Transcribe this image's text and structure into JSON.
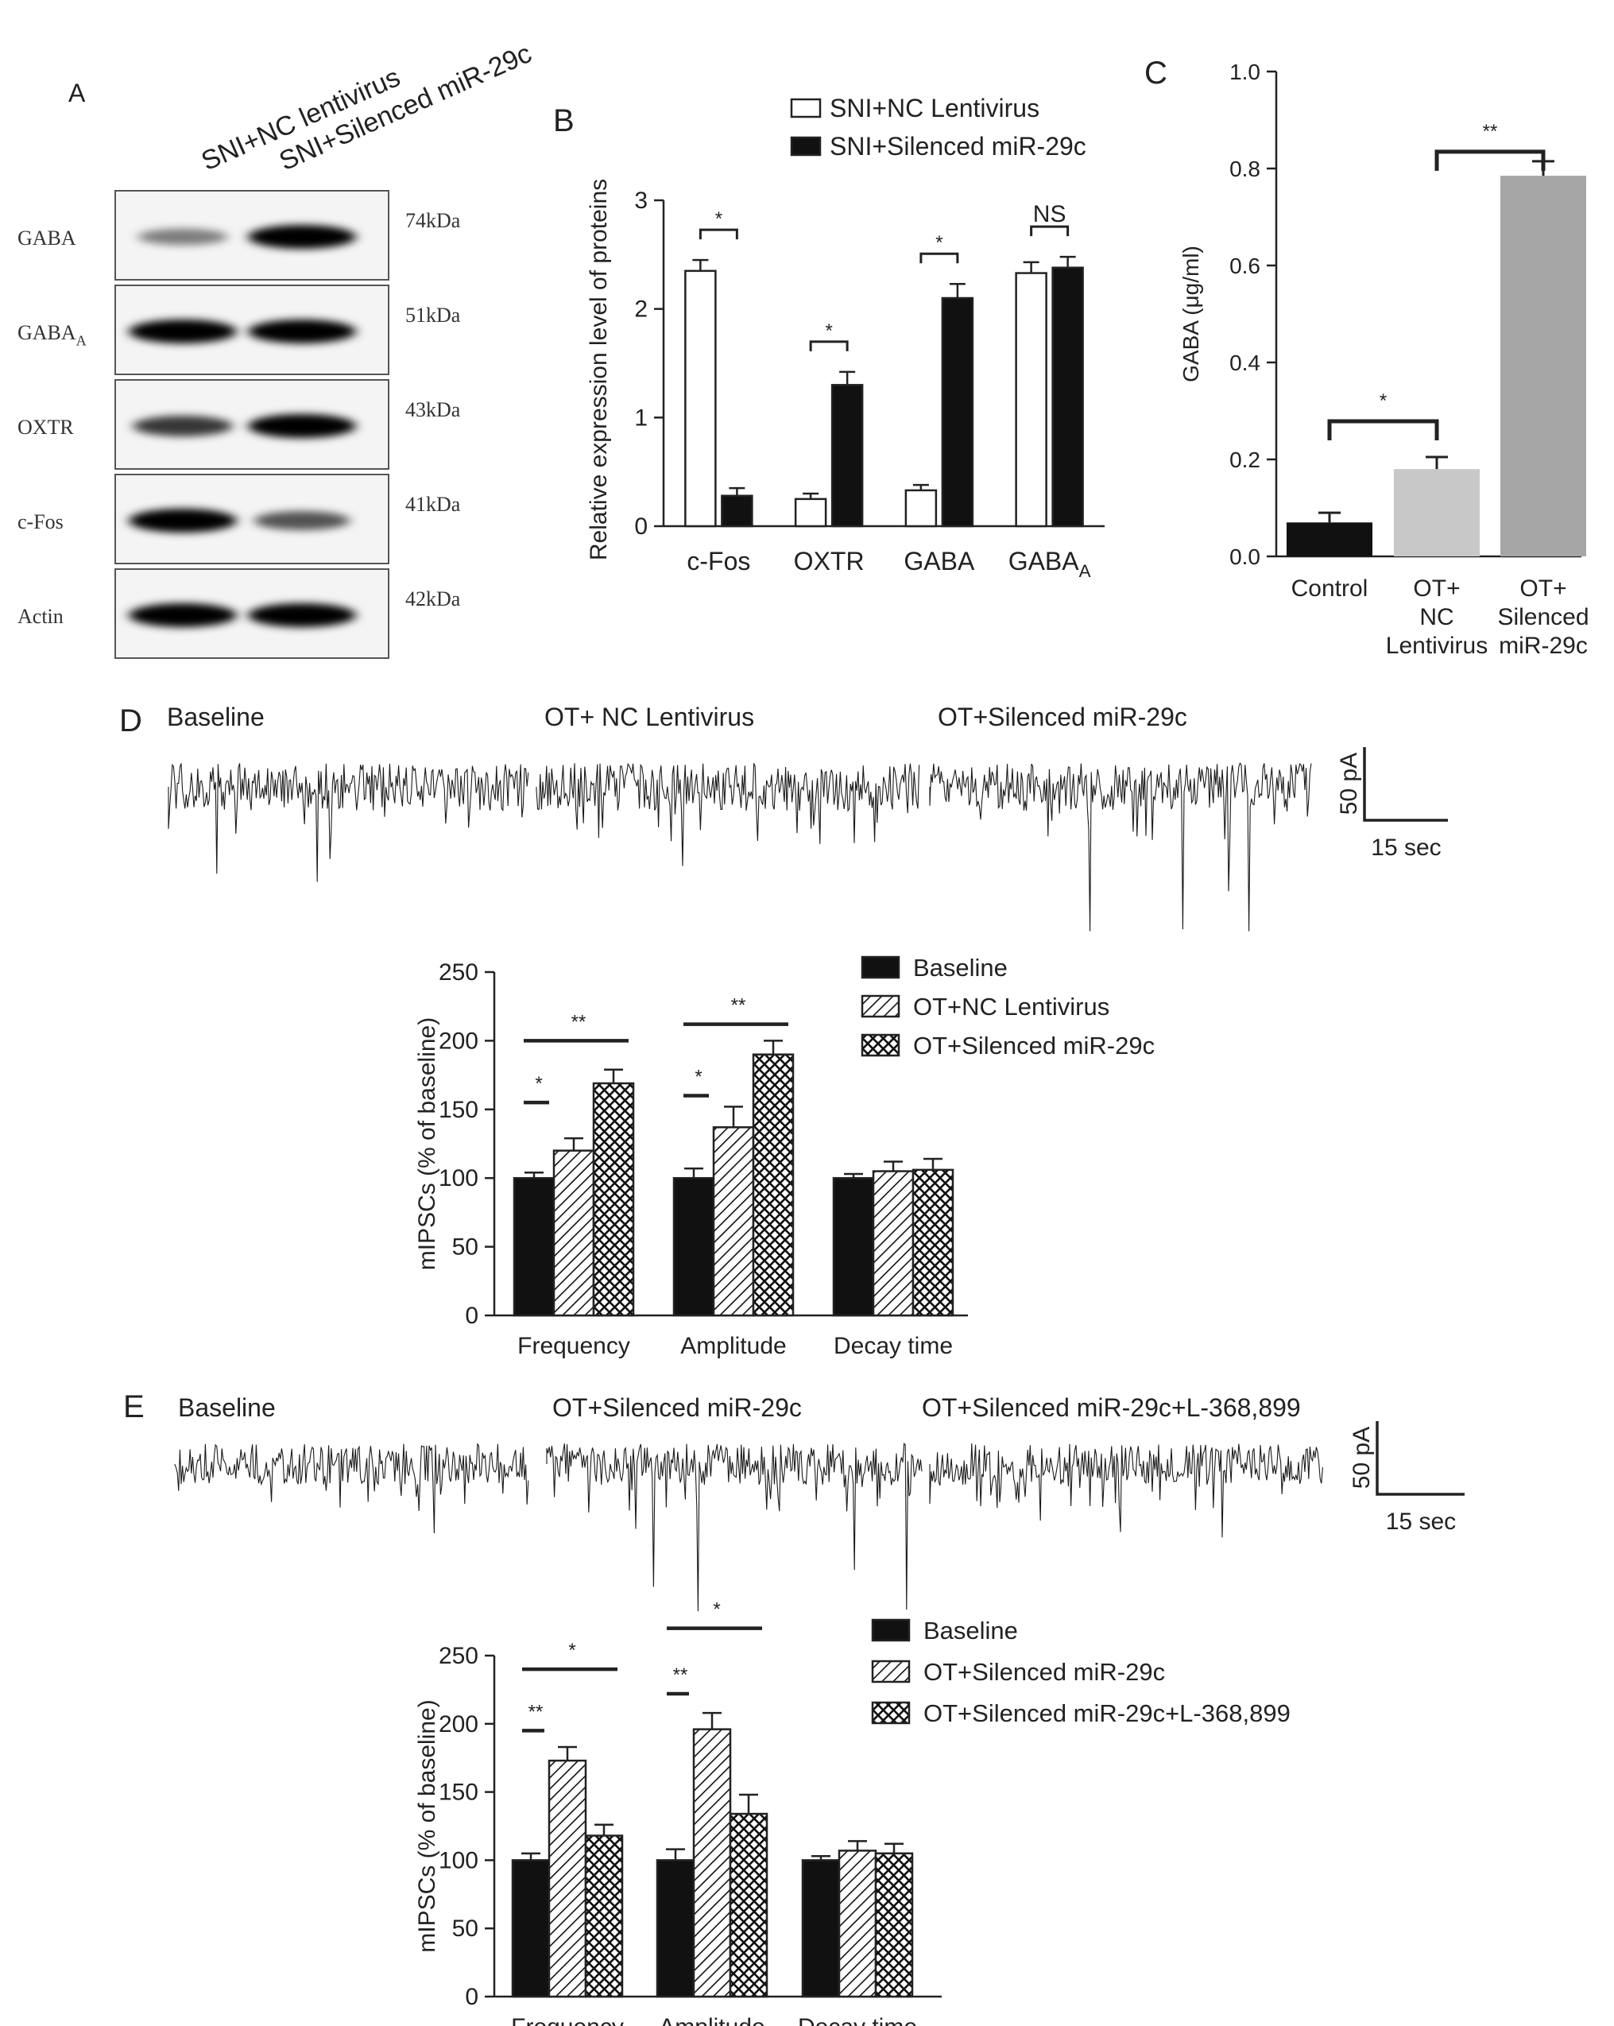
{
  "colors": {
    "black": "#111111",
    "white": "#ffffff",
    "light_grey": "#c8c8c8",
    "dark_grey": "#a6a6a6",
    "axis": "#222222",
    "trace": "#1a1a1a"
  },
  "panel_labels": {
    "a": "A",
    "b": "B",
    "c": "C",
    "d": "D",
    "e": "E"
  },
  "panel_a": {
    "lanes": [
      "SNI+NC lentivirus",
      "SNI+Silenced miR-29c"
    ],
    "proteins": [
      {
        "name": "GABA",
        "sub": "",
        "kda": "74kDa",
        "lane1": 0.32,
        "lane2": 1.0
      },
      {
        "name": "GABA",
        "sub": "A",
        "kda": "51kDa",
        "lane1": 1.0,
        "lane2": 1.0
      },
      {
        "name": "OXTR",
        "sub": "",
        "kda": "43kDa",
        "lane1": 0.7,
        "lane2": 1.0
      },
      {
        "name": "c-Fos",
        "sub": "",
        "kda": "41kDa",
        "lane1": 1.0,
        "lane2": 0.55
      },
      {
        "name": "Actin",
        "sub": "",
        "kda": "42kDa",
        "lane1": 1.0,
        "lane2": 1.0
      }
    ]
  },
  "stats": {
    "one": "*",
    "two": "**",
    "ns": "NS"
  },
  "panel_d": {
    "traces": [
      "Baseline",
      "OT+ NC  Lentivirus",
      "OT+Silenced miR-29c"
    ],
    "scale_y": "50 pA",
    "scale_x": "15 sec"
  },
  "panel_e": {
    "traces": [
      "Baseline",
      "OT+Silenced miR-29c",
      "OT+Silenced miR-29c+L-368,899"
    ],
    "scale_y": "50 pA",
    "scale_x": "15 sec"
  },
  "chart_data": [
    {
      "id": "B",
      "type": "bar",
      "categories": [
        "c-Fos",
        "OXTR",
        "GABA",
        "GABA_A"
      ],
      "category_display": [
        {
          "text": "c-Fos",
          "sub": ""
        },
        {
          "text": "OXTR",
          "sub": ""
        },
        {
          "text": "GABA",
          "sub": ""
        },
        {
          "text": "GABA",
          "sub": "A"
        }
      ],
      "series": [
        {
          "name": "SNI+NC  Lentivirus",
          "values": [
            2.35,
            0.25,
            0.33,
            2.33
          ],
          "errors": [
            0.1,
            0.05,
            0.05,
            0.1
          ],
          "fill": "white"
        },
        {
          "name": "SNI+Silenced miR-29c",
          "values": [
            0.28,
            1.3,
            2.1,
            2.38
          ],
          "errors": [
            0.07,
            0.12,
            0.13,
            0.1
          ],
          "fill": "black"
        }
      ],
      "ylabel": "Relative expression level of proteins",
      "xlabel": "",
      "ylim": [
        0,
        3
      ],
      "yticks": [
        0,
        1,
        2,
        3
      ],
      "significance": [
        "*",
        "*",
        "*",
        "NS"
      ],
      "legend": "top"
    },
    {
      "id": "C",
      "type": "bar",
      "categories": [
        "Control",
        "OT+ NC Lentivirus",
        "OT+ Silenced miR-29c"
      ],
      "category_lines": [
        [
          "Control"
        ],
        [
          "OT+",
          "NC",
          "Lentivirus"
        ],
        [
          "OT+",
          "Silenced",
          "miR-29c"
        ]
      ],
      "values": [
        0.07,
        0.18,
        0.785
      ],
      "errors": [
        0.02,
        0.025,
        0.03
      ],
      "ylabel": "GABA (μg/ml)",
      "xlabel": "",
      "ylim": [
        0,
        1.0
      ],
      "yticks": [
        "0.0",
        "0.2",
        "0.4",
        "0.6",
        "0.8",
        "1.0"
      ],
      "comparisons": [
        {
          "from": 0,
          "to": 1,
          "label": "*"
        },
        {
          "from": 1,
          "to": 2,
          "label": "**"
        }
      ]
    },
    {
      "id": "D",
      "type": "bar",
      "categories": [
        "Frequency",
        "Amplitude",
        "Decay time"
      ],
      "series": [
        {
          "name": "Baseline",
          "values": [
            100,
            100,
            100
          ],
          "errors": [
            4,
            7,
            3
          ],
          "fill": "black"
        },
        {
          "name": "OT+NC  Lentivirus",
          "values": [
            120,
            137,
            105
          ],
          "errors": [
            9,
            15,
            7
          ],
          "fill": "hatch"
        },
        {
          "name": "OT+Silenced miR-29c",
          "values": [
            169,
            190,
            106
          ],
          "errors": [
            10,
            10,
            8
          ],
          "fill": "cross"
        }
      ],
      "ylabel": "mIPSCs (% of baseline)",
      "xlabel": "",
      "ylim": [
        0,
        250
      ],
      "yticks": [
        0,
        50,
        100,
        150,
        200,
        250
      ],
      "comparisons": [
        {
          "group": 0,
          "a": 0,
          "b": 1,
          "label": "*",
          "y": 155
        },
        {
          "group": 0,
          "a": 0,
          "b": 2,
          "label": "**",
          "y": 200
        },
        {
          "group": 1,
          "a": 0,
          "b": 1,
          "label": "*",
          "y": 160
        },
        {
          "group": 1,
          "a": 0,
          "b": 2,
          "label": "**",
          "y": 212
        }
      ],
      "legend": "top-right"
    },
    {
      "id": "E",
      "type": "bar",
      "categories": [
        "Frequency",
        "Amplitude",
        "Decay time"
      ],
      "series": [
        {
          "name": "Baseline",
          "values": [
            100,
            100,
            100
          ],
          "errors": [
            5,
            8,
            3
          ],
          "fill": "black"
        },
        {
          "name": "OT+Silenced miR-29c",
          "values": [
            173,
            196,
            107
          ],
          "errors": [
            10,
            12,
            7
          ],
          "fill": "hatch"
        },
        {
          "name": "OT+Silenced miR-29c+L-368,899",
          "values": [
            118,
            134,
            105
          ],
          "errors": [
            8,
            14,
            7
          ],
          "fill": "cross"
        }
      ],
      "ylabel": "mIPSCs (% of baseline)",
      "xlabel": "",
      "ylim": [
        0,
        250
      ],
      "yticks": [
        0,
        50,
        100,
        150,
        200,
        250
      ],
      "comparisons": [
        {
          "group": 0,
          "a": 0,
          "b": 1,
          "label": "**",
          "y": 195
        },
        {
          "group": 0,
          "a": 0,
          "b": 2,
          "label": "*",
          "y": 240
        },
        {
          "group": 1,
          "a": 0,
          "b": 1,
          "label": "**",
          "y": 222
        },
        {
          "group": 1,
          "a": 0,
          "b": 2,
          "label": "*",
          "y": 270
        }
      ],
      "legend": "top-right"
    }
  ]
}
